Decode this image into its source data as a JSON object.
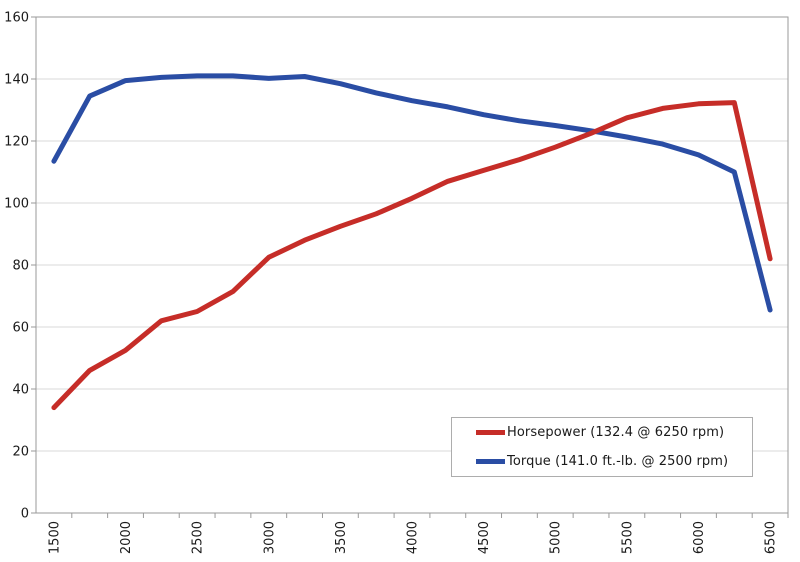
{
  "chart_data": {
    "type": "line",
    "title": "",
    "xlabel": "",
    "ylabel": "",
    "x_rpm": [
      1500,
      1750,
      2000,
      2250,
      2500,
      2750,
      3000,
      3250,
      3500,
      3750,
      4000,
      4250,
      4500,
      4750,
      5000,
      5250,
      5500,
      5750,
      6000,
      6250,
      6500
    ],
    "x_tick_labels": [
      "1500",
      "2000",
      "2500",
      "3000",
      "3500",
      "4000",
      "4500",
      "5000",
      "5500",
      "6000",
      "6500"
    ],
    "y_tick_labels": [
      "0",
      "20",
      "40",
      "60",
      "80",
      "100",
      "120",
      "140",
      "160"
    ],
    "ylim": [
      0,
      160
    ],
    "ytick_step": 20,
    "grid": "horizontal",
    "legend_position": "inside-bottom-right",
    "series": [
      {
        "name": "Horsepower",
        "legend_label": "Horsepower (132.4 @ 6250 rpm)",
        "color": "#c62d28",
        "values": [
          34,
          46,
          52.5,
          62,
          65,
          71.5,
          82.5,
          88,
          92.5,
          96.5,
          101.5,
          107,
          110.5,
          114,
          118,
          122.5,
          127.5,
          130.5,
          132,
          132.4,
          82
        ]
      },
      {
        "name": "Torque",
        "legend_label": "Torque (141.0 ft.-lb. @ 2500 rpm)",
        "color": "#2a4da4",
        "values": [
          113.5,
          134.5,
          139.5,
          140.5,
          141,
          141,
          140.2,
          140.8,
          138.5,
          135.5,
          133,
          131,
          128.5,
          126.5,
          125,
          123.3,
          121.3,
          119,
          115.5,
          110,
          65.5
        ]
      }
    ]
  },
  "colors": {
    "background": "#ffffff",
    "gridline": "#d9d9d9",
    "frame": "#9a9a9a",
    "tick": "#9a9a9a",
    "text": "#1a1a1a",
    "legend_border": "#adadad"
  }
}
